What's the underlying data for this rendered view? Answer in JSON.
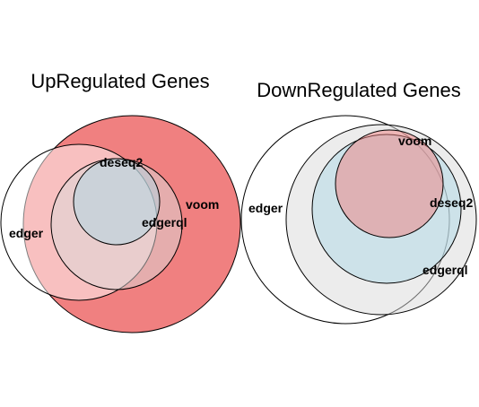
{
  "panels": [
    {
      "title": "UpRegulated Genes",
      "sets": [
        {
          "name": "voom",
          "color": "#f08080"
        },
        {
          "name": "edger",
          "color": "#ffffff"
        },
        {
          "name": "edgerql",
          "color": "#d9d9d9"
        },
        {
          "name": "deseq2",
          "color": "#add8e6"
        }
      ]
    },
    {
      "title": "DownRegulated Genes",
      "sets": [
        {
          "name": "edger",
          "color": "#ffffff"
        },
        {
          "name": "edgerql",
          "color": "#d9d9d9"
        },
        {
          "name": "deseq2",
          "color": "#add8e6"
        },
        {
          "name": "voom",
          "color": "#f08080"
        }
      ]
    }
  ]
}
